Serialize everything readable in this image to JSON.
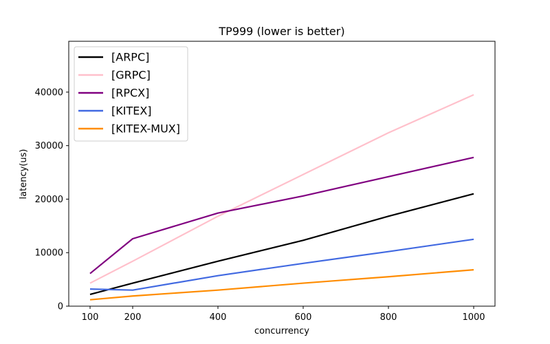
{
  "chart_data": {
    "type": "line",
    "title": "TP999 (lower is better)",
    "xlabel": "concurrency",
    "ylabel": "latency(us)",
    "x": [
      100,
      200,
      400,
      600,
      800,
      1000
    ],
    "xticks": [
      100,
      200,
      400,
      600,
      800,
      1000
    ],
    "yticks": [
      0,
      10000,
      20000,
      30000,
      40000
    ],
    "xlim": [
      50,
      1050
    ],
    "ylim": [
      0,
      49500
    ],
    "grid": false,
    "legend_position": "top-left",
    "series": [
      {
        "name": "[ARPC]",
        "color": "#000000",
        "values": [
          2200,
          4300,
          8400,
          12300,
          16800,
          21000
        ]
      },
      {
        "name": "[GRPC]",
        "color": "#ffc0cb",
        "values": [
          4300,
          8400,
          16800,
          24600,
          32400,
          39500
        ]
      },
      {
        "name": "[RPCX]",
        "color": "#800080",
        "values": [
          6100,
          12600,
          17400,
          20600,
          24200,
          27800
        ]
      },
      {
        "name": "[KITEX]",
        "color": "#4169e1",
        "values": [
          3200,
          3000,
          5700,
          8000,
          10200,
          12500
        ]
      },
      {
        "name": "[KITEX-MUX]",
        "color": "#ff8c00",
        "values": [
          1200,
          1900,
          3000,
          4300,
          5500,
          6800
        ]
      }
    ]
  }
}
